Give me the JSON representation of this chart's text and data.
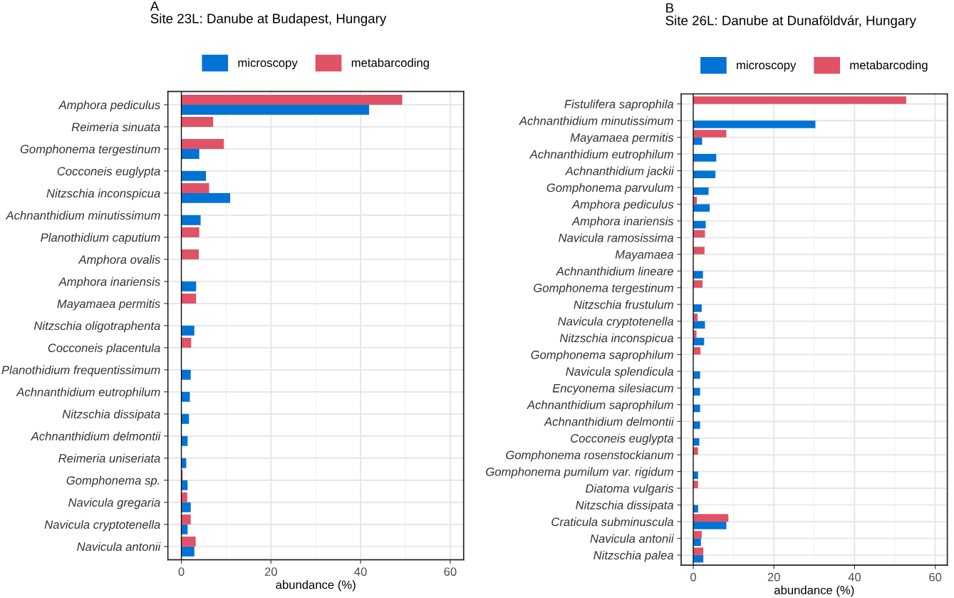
{
  "chart_data": [
    {
      "type": "bar",
      "orientation": "horizontal",
      "title": "A",
      "subtitle": "Site 23L: Danube at Budapest, Hungary",
      "xlabel": "abundance (%)",
      "categories": [
        "Amphora pediculus",
        "Reimeria sinuata",
        "Gomphonema tergestinum",
        "Cocconeis euglypta",
        "Nitzschia inconspicua",
        "Achnanthidium minutissimum",
        "Planothidium caputium",
        "Amphora ovalis",
        "Amphora inariensis",
        "Mayamaea permitis",
        "Nitzschia oligotraphenta",
        "Cocconeis placentula",
        "Planothidium frequentissimum",
        "Achnanthidium eutrophilum",
        "Nitzschia dissipata",
        "Achnanthidium delmontii",
        "Reimeria uniseriata",
        "Gomphonema sp.",
        "Navicula gregaria",
        "Navicula cryptotenella",
        "Navicula antonii"
      ],
      "series": [
        {
          "name": "microscopy",
          "color": "#0073d5",
          "values": [
            41.9,
            null,
            4.0,
            5.5,
            10.9,
            4.3,
            null,
            null,
            3.3,
            null,
            2.9,
            null,
            2.1,
            1.9,
            1.7,
            1.4,
            1.1,
            1.4,
            2.1,
            1.4,
            2.9
          ]
        },
        {
          "name": "metabarcoding",
          "color": "#e05266",
          "values": [
            49.3,
            7.1,
            9.5,
            null,
            6.2,
            null,
            4.0,
            3.9,
            null,
            3.3,
            null,
            2.2,
            null,
            null,
            null,
            null,
            null,
            0.3,
            1.3,
            2.1,
            3.2
          ]
        }
      ],
      "xlim": [
        -3,
        63
      ],
      "xticks": [
        0,
        20,
        40,
        60
      ],
      "grid": true,
      "legend": "top",
      "ref_lines": [
        {
          "axis": "x",
          "value": 0,
          "color": "#000000"
        }
      ]
    },
    {
      "type": "bar",
      "orientation": "horizontal",
      "title": "B",
      "subtitle": "Site 26L: Danube at Dunaföldvár, Hungary",
      "xlabel": "abundance (%)",
      "categories": [
        "Fistulifera saprophila",
        "Achnanthidium minutissimum",
        "Mayamaea permitis",
        "Achnanthidium eutrophilum",
        "Achnanthidium jackii",
        "Gomphonema parvulum",
        "Amphora pediculus",
        "Amphora inariensis",
        "Navicula ramosissima",
        "Mayamaea",
        "Achnanthidium lineare",
        "Gomphonema tergestinum",
        "Nitzschia frustulum",
        "Navicula cryptotenella",
        "Nitzschia inconspicua",
        "Gomphonema saprophilum",
        "Navicula splendicula",
        "Encyonema silesiacum",
        "Achnanthidium saprophilum",
        "Achnanthidium delmontii",
        "Cocconeis euglypta",
        "Gomphonema rosenstockianum",
        "Gomphonema pumilum var. rigidum",
        "Diatoma vulgaris",
        "Nitzschia dissipata",
        "Craticula subminuscula",
        "Navicula antonii",
        "Nitzschia palea"
      ],
      "series": [
        {
          "name": "microscopy",
          "color": "#0073d5",
          "values": [
            null,
            30.3,
            2.2,
            5.7,
            5.5,
            3.8,
            4.1,
            3.1,
            null,
            null,
            2.4,
            null,
            2.1,
            2.9,
            2.7,
            null,
            1.7,
            1.7,
            1.7,
            1.7,
            1.5,
            null,
            1.2,
            null,
            1.2,
            8.2,
            1.9,
            2.5
          ]
        },
        {
          "name": "metabarcoding",
          "color": "#e05266",
          "values": [
            52.8,
            null,
            8.2,
            null,
            null,
            null,
            0.9,
            null,
            2.9,
            2.8,
            null,
            2.3,
            null,
            1.1,
            0.8,
            1.8,
            null,
            null,
            null,
            null,
            null,
            1.2,
            null,
            1.2,
            null,
            8.7,
            2.1,
            2.5
          ]
        }
      ],
      "xlim": [
        -3,
        63
      ],
      "xticks": [
        0,
        20,
        40,
        60
      ],
      "grid": true,
      "legend": "top",
      "ref_lines": [
        {
          "axis": "x",
          "value": 0,
          "color": "#000000"
        }
      ]
    }
  ]
}
